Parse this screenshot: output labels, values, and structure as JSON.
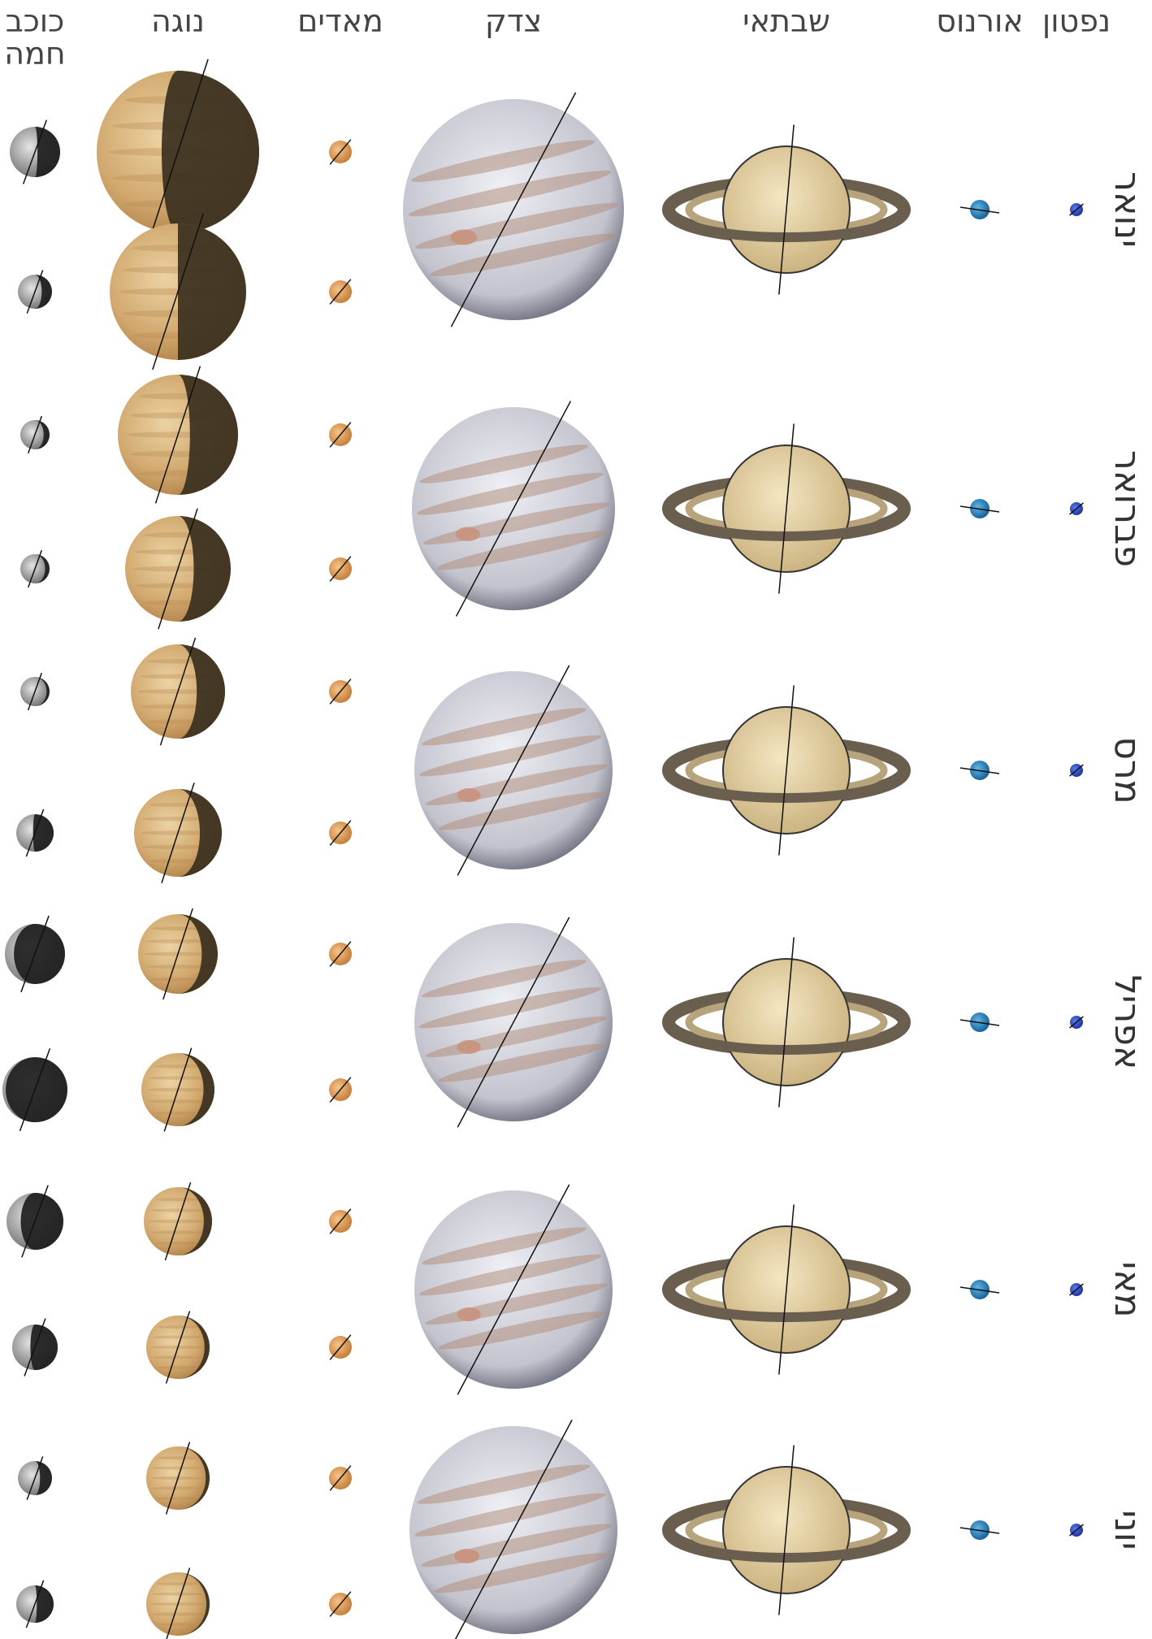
{
  "columns": [
    "כוכב חמה",
    "נוגה",
    "מאדים",
    "צדק",
    "שבתאי",
    "אורנוס",
    "נפטון"
  ],
  "months": [
    "ינואר",
    "פברואר",
    "מרס",
    "אפריל",
    "מאי",
    "יוני"
  ]
}
